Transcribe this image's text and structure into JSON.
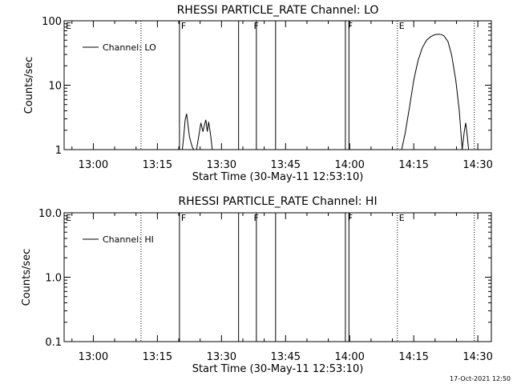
{
  "chart_data": [
    {
      "type": "line",
      "title": "RHESSI PARTICLE_RATE Channel: LO",
      "xlabel": "Start Time (30-May-11 12:53:10)",
      "ylabel": "Counts/sec",
      "y_scale": "log",
      "ylim": [
        1,
        100
      ],
      "y_ticks": [
        1,
        10,
        100
      ],
      "y_tick_labels": [
        "1",
        "10",
        "100"
      ],
      "xlim": [
        "12:53:10",
        "14:33:10"
      ],
      "x_ticks": [
        "13:00",
        "13:15",
        "13:30",
        "13:45",
        "14:00",
        "14:15",
        "14:30"
      ],
      "legend": {
        "entries": [
          "Channel: LO"
        ],
        "placement": "top-left"
      },
      "flags": [
        {
          "letter": "E",
          "time": "12:53:10"
        },
        {
          "letter": "F",
          "time": "13:20:10"
        },
        {
          "letter": "F",
          "time": "13:37:10"
        },
        {
          "letter": "F",
          "time": "13:59:10"
        },
        {
          "letter": "E",
          "time": "14:11:10"
        }
      ],
      "dotted_lines": [
        "13:11:10",
        "14:11:10",
        "14:29:10"
      ],
      "solid_lines": [
        "13:20:10",
        "13:34:00",
        "13:38:10",
        "13:42:40",
        "13:59:00",
        "13:59:50"
      ],
      "series": [
        {
          "name": "Channel: LO",
          "segments": [
            {
              "x": [
                "13:20:50",
                "13:21:10",
                "13:21:30",
                "13:21:50",
                "13:22:10",
                "13:22:30",
                "13:22:50",
                "13:23:10",
                "13:23:30"
              ],
              "y": [
                1.0,
                1.6,
                2.9,
                3.6,
                2.4,
                1.6,
                1.3,
                1.1,
                1.0
              ]
            },
            {
              "x": [
                "13:24:10",
                "13:24:40",
                "13:25:10",
                "13:25:40",
                "13:26:00",
                "13:26:20",
                "13:26:40",
                "13:27:00",
                "13:27:30",
                "13:27:50"
              ],
              "y": [
                1.0,
                1.6,
                2.6,
                1.9,
                2.4,
                2.9,
                1.9,
                2.7,
                1.6,
                1.0
              ]
            },
            {
              "x": [
                "14:12:10",
                "14:13:00",
                "14:14:00",
                "14:15:00",
                "14:16:00",
                "14:17:00",
                "14:18:00",
                "14:19:00",
                "14:20:00",
                "14:21:00",
                "14:22:00",
                "14:23:00",
                "14:23:50",
                "14:24:50",
                "14:25:40",
                "14:26:20"
              ],
              "y": [
                1.0,
                1.8,
                4.5,
                12.0,
                24.0,
                38.0,
                50.0,
                57.0,
                61.0,
                62.0,
                59.0,
                48.0,
                30.0,
                12.0,
                4.0,
                1.0
              ]
            },
            {
              "x": [
                "14:26:20",
                "14:26:50",
                "14:27:10",
                "14:27:30",
                "14:27:50"
              ],
              "y": [
                1.0,
                1.9,
                2.6,
                1.7,
                1.0
              ]
            }
          ]
        }
      ]
    },
    {
      "type": "line",
      "title": "RHESSI PARTICLE_RATE Channel: HI",
      "xlabel": "Start Time (30-May-11 12:53:10)",
      "ylabel": "Counts/sec",
      "y_scale": "log",
      "ylim": [
        0.1,
        10
      ],
      "y_ticks": [
        0.1,
        1,
        10
      ],
      "y_tick_labels": [
        "0.1",
        "1.0",
        "10.0"
      ],
      "xlim": [
        "12:53:10",
        "14:33:10"
      ],
      "x_ticks": [
        "13:00",
        "13:15",
        "13:30",
        "13:45",
        "14:00",
        "14:15",
        "14:30"
      ],
      "legend": {
        "entries": [
          "Channel: HI"
        ],
        "placement": "top-left"
      },
      "flags": [
        {
          "letter": "E",
          "time": "12:53:10"
        },
        {
          "letter": "F",
          "time": "13:20:10"
        },
        {
          "letter": "F",
          "time": "13:37:10"
        },
        {
          "letter": "F",
          "time": "13:59:10"
        },
        {
          "letter": "E",
          "time": "14:11:10"
        }
      ],
      "dotted_lines": [
        "13:11:10",
        "14:11:10",
        "14:29:10"
      ],
      "solid_lines": [
        "13:20:10",
        "13:34:00",
        "13:38:10",
        "13:42:40",
        "13:59:00",
        "13:59:50"
      ],
      "series": [
        {
          "name": "Channel: HI",
          "segments": []
        }
      ]
    }
  ],
  "footer": {
    "timestamp": "17-Oct-2021 12:50"
  }
}
